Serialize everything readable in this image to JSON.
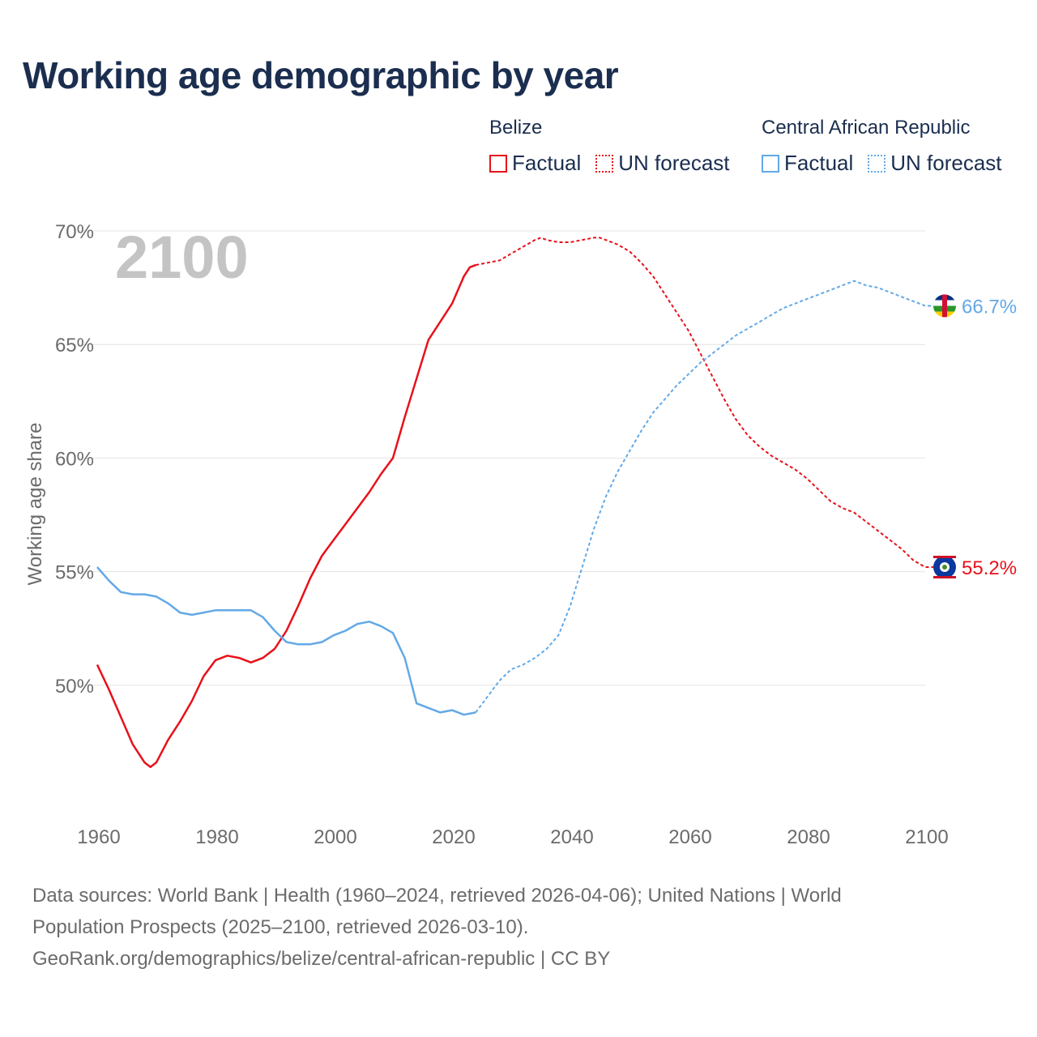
{
  "title": "Working age demographic by year",
  "legend": {
    "groups": [
      {
        "name": "Belize",
        "factual": "Factual",
        "forecast": "UN forecast",
        "color": "#e8111a"
      },
      {
        "name": "Central African Republic",
        "factual": "Factual",
        "forecast": "UN forecast",
        "color": "#63a9e6"
      }
    ]
  },
  "chart_data": {
    "type": "line",
    "title": "Working age demographic by year",
    "xlabel": "",
    "ylabel": "Working age share",
    "xlim": [
      1960,
      2100
    ],
    "ylim": [
      44.5,
      70
    ],
    "xticks": [
      1960,
      1980,
      2000,
      2020,
      2040,
      2060,
      2080,
      2100
    ],
    "yticks": [
      50,
      55,
      60,
      65,
      70
    ],
    "ytick_labels": [
      "50%",
      "55%",
      "60%",
      "65%",
      "70%"
    ],
    "year_watermark": "2100",
    "series": [
      {
        "name": "Belize",
        "color": "#e8111a",
        "end_label": "55.2%",
        "factual": {
          "x": [
            1960,
            1962,
            1964,
            1966,
            1968,
            1969,
            1970,
            1972,
            1974,
            1976,
            1978,
            1980,
            1982,
            1984,
            1986,
            1988,
            1990,
            1992,
            1994,
            1996,
            1998,
            2000,
            2002,
            2004,
            2006,
            2008,
            2010,
            2012,
            2014,
            2016,
            2018,
            2020,
            2022,
            2023,
            2024
          ],
          "y": [
            50.9,
            49.8,
            48.6,
            47.4,
            46.6,
            46.4,
            46.6,
            47.6,
            48.4,
            49.3,
            50.4,
            51.1,
            51.3,
            51.2,
            51.0,
            51.2,
            51.6,
            52.4,
            53.5,
            54.7,
            55.7,
            56.4,
            57.1,
            57.8,
            58.5,
            59.3,
            60.0,
            61.8,
            63.5,
            65.2,
            66.0,
            66.8,
            68.0,
            68.4,
            68.5
          ]
        },
        "forecast": {
          "x": [
            2024,
            2026,
            2028,
            2030,
            2032,
            2034,
            2035,
            2036,
            2038,
            2040,
            2042,
            2044,
            2045,
            2046,
            2048,
            2050,
            2052,
            2054,
            2056,
            2058,
            2060,
            2062,
            2064,
            2066,
            2068,
            2070,
            2072,
            2074,
            2076,
            2078,
            2080,
            2082,
            2084,
            2086,
            2088,
            2090,
            2092,
            2094,
            2096,
            2098,
            2100
          ],
          "y": [
            68.5,
            68.6,
            68.7,
            69.0,
            69.3,
            69.6,
            69.7,
            69.6,
            69.5,
            69.5,
            69.6,
            69.7,
            69.7,
            69.6,
            69.4,
            69.1,
            68.6,
            68.0,
            67.2,
            66.4,
            65.6,
            64.6,
            63.6,
            62.6,
            61.7,
            61.0,
            60.5,
            60.1,
            59.8,
            59.5,
            59.1,
            58.6,
            58.1,
            57.8,
            57.6,
            57.2,
            56.8,
            56.4,
            56.0,
            55.5,
            55.2
          ]
        }
      },
      {
        "name": "Central African Republic",
        "color": "#63a9e6",
        "end_label": "66.7%",
        "factual": {
          "x": [
            1960,
            1962,
            1964,
            1966,
            1968,
            1970,
            1972,
            1974,
            1976,
            1978,
            1980,
            1982,
            1984,
            1986,
            1988,
            1990,
            1992,
            1994,
            1996,
            1998,
            2000,
            2002,
            2004,
            2006,
            2008,
            2010,
            2012,
            2014,
            2016,
            2018,
            2020,
            2022,
            2024
          ],
          "y": [
            55.2,
            54.6,
            54.1,
            54.0,
            54.0,
            53.9,
            53.6,
            53.2,
            53.1,
            53.2,
            53.3,
            53.3,
            53.3,
            53.3,
            53.0,
            52.4,
            51.9,
            51.8,
            51.8,
            51.9,
            52.2,
            52.4,
            52.7,
            52.8,
            52.6,
            52.3,
            51.2,
            49.2,
            49.0,
            48.8,
            48.9,
            48.7,
            48.8
          ]
        },
        "forecast": {
          "x": [
            2024,
            2026,
            2028,
            2030,
            2032,
            2034,
            2036,
            2038,
            2040,
            2042,
            2044,
            2046,
            2048,
            2050,
            2052,
            2054,
            2056,
            2058,
            2060,
            2062,
            2064,
            2066,
            2068,
            2070,
            2072,
            2074,
            2076,
            2078,
            2080,
            2082,
            2084,
            2086,
            2088,
            2090,
            2092,
            2094,
            2096,
            2098,
            2100
          ],
          "y": [
            48.8,
            49.5,
            50.2,
            50.7,
            50.9,
            51.2,
            51.6,
            52.2,
            53.5,
            55.2,
            56.9,
            58.3,
            59.4,
            60.3,
            61.2,
            62.0,
            62.6,
            63.2,
            63.7,
            64.2,
            64.6,
            65.0,
            65.4,
            65.7,
            66.0,
            66.3,
            66.6,
            66.8,
            67.0,
            67.2,
            67.4,
            67.6,
            67.8,
            67.6,
            67.5,
            67.3,
            67.1,
            66.9,
            66.7
          ]
        }
      }
    ]
  },
  "source": {
    "line1": "Data sources: World Bank | Health (1960–2024, retrieved 2026-04-06); United Nations | World",
    "line2": "Population Prospects (2025–2100, retrieved 2026-03-10).",
    "line3": "GeoRank.org/demographics/belize/central-african-republic | CC BY"
  }
}
